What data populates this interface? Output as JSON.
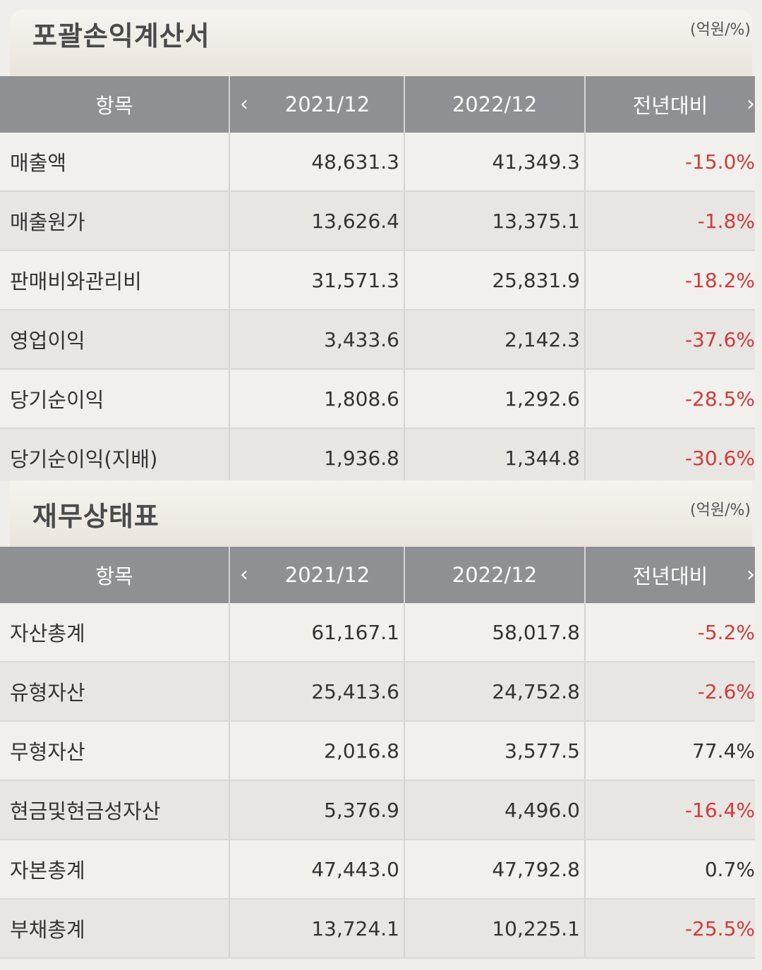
{
  "income": {
    "title": "포괄손익계산서",
    "unit": "(억원/%)",
    "headers": {
      "item": "항목",
      "y1": "2021/12",
      "y2": "2022/12",
      "change": "전년대비"
    },
    "rows": [
      {
        "label": "매출액",
        "y1": "48,631.3",
        "y2": "41,349.3",
        "change": "-15.0%"
      },
      {
        "label": "매출원가",
        "y1": "13,626.4",
        "y2": "13,375.1",
        "change": "-1.8%"
      },
      {
        "label": "판매비와관리비",
        "y1": "31,571.3",
        "y2": "25,831.9",
        "change": "-18.2%"
      },
      {
        "label": "영업이익",
        "y1": "3,433.6",
        "y2": "2,142.3",
        "change": "-37.6%"
      },
      {
        "label": "당기순이익",
        "y1": "1,808.6",
        "y2": "1,292.6",
        "change": "-28.5%"
      },
      {
        "label": "당기순이익(지배)",
        "y1": "1,936.8",
        "y2": "1,344.8",
        "change": "-30.6%"
      }
    ]
  },
  "balance": {
    "title": "재무상태표",
    "unit": "(억원/%)",
    "headers": {
      "item": "항목",
      "y1": "2021/12",
      "y2": "2022/12",
      "change": "전년대비"
    },
    "rows": [
      {
        "label": "자산총계",
        "y1": "61,167.1",
        "y2": "58,017.8",
        "change": "-5.2%"
      },
      {
        "label": "유형자산",
        "y1": "25,413.6",
        "y2": "24,752.8",
        "change": "-2.6%"
      },
      {
        "label": "무형자산",
        "y1": "2,016.8",
        "y2": "3,577.5",
        "change": "77.4%"
      },
      {
        "label": "현금및현금성자산",
        "y1": "5,376.9",
        "y2": "4,496.0",
        "change": "-16.4%"
      },
      {
        "label": "자본총계",
        "y1": "47,443.0",
        "y2": "47,792.8",
        "change": "0.7%"
      },
      {
        "label": "부채총계",
        "y1": "13,724.1",
        "y2": "10,225.1",
        "change": "-25.5%"
      }
    ]
  },
  "icons": {
    "prev": "chevron-left-icon",
    "next": "chevron-right-icon"
  },
  "colors": {
    "negative": "#d23a3a",
    "header_bg": "#8f9094"
  }
}
